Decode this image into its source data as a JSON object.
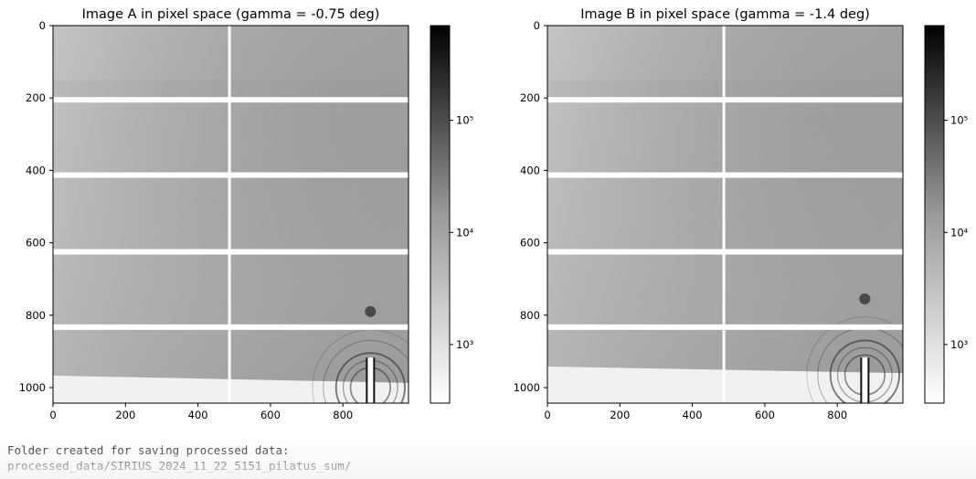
{
  "chart_data": [
    {
      "type": "heatmap",
      "title": "Image A in pixel space (gamma = -0.75 deg)",
      "xlim": [
        0,
        981
      ],
      "ylim": [
        1043,
        0
      ],
      "y_inverted": true,
      "x_ticks": [
        0,
        200,
        400,
        600,
        800
      ],
      "y_ticks": [
        0,
        200,
        400,
        600,
        800,
        1000
      ],
      "colormap": "gray_r",
      "colorbar": {
        "scale": "log",
        "range": [
          300,
          700000
        ],
        "ticks": [
          {
            "value": 1000,
            "label": "10³"
          },
          {
            "value": 10000,
            "label": "10⁴"
          },
          {
            "value": 100000,
            "label": "10⁵"
          }
        ]
      },
      "detector_gaps": {
        "rows": [
          205,
          413,
          625,
          833
        ],
        "cols": [
          487
        ]
      },
      "beamstop": {
        "x": 876,
        "y_top": 917
      },
      "shadow_edge": {
        "x": [
          0,
          981
        ],
        "y": [
          967,
          987
        ]
      },
      "ring_center": [
        876,
        1000
      ]
    },
    {
      "type": "heatmap",
      "title": "Image B in pixel space (gamma = -1.4 deg)",
      "xlim": [
        0,
        981
      ],
      "ylim": [
        1043,
        0
      ],
      "y_inverted": true,
      "x_ticks": [
        0,
        200,
        400,
        600,
        800
      ],
      "y_ticks": [
        0,
        200,
        400,
        600,
        800,
        1000
      ],
      "colormap": "gray_r",
      "colorbar": {
        "scale": "log",
        "range": [
          300,
          700000
        ],
        "ticks": [
          {
            "value": 1000,
            "label": "10³"
          },
          {
            "value": 10000,
            "label": "10⁴"
          },
          {
            "value": 100000,
            "label": "10⁵"
          }
        ]
      },
      "detector_gaps": {
        "rows": [
          205,
          413,
          625,
          833
        ],
        "cols": [
          487
        ]
      },
      "beamstop": {
        "x": 876,
        "y_top": 917
      },
      "shadow_edge": {
        "x": [
          0,
          981
        ],
        "y": [
          942,
          960
        ]
      },
      "ring_center": [
        876,
        965
      ]
    }
  ],
  "output": {
    "line1": "Folder created for saving processed data:",
    "line2": "processed_data/SIRIUS_2024_11_22_5151_pilatus_sum/"
  }
}
